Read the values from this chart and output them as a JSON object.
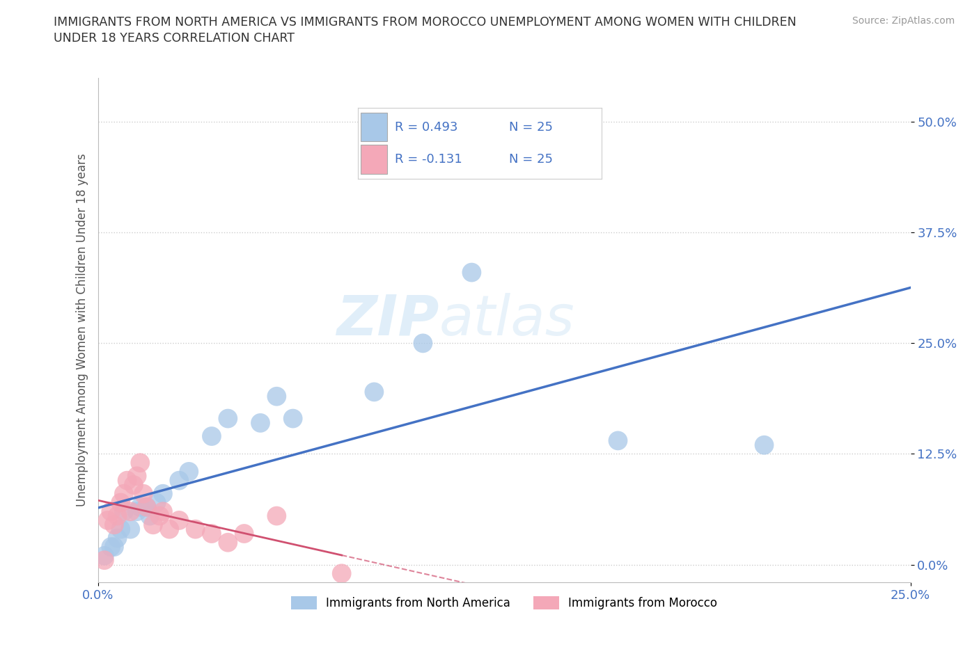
{
  "title_line1": "IMMIGRANTS FROM NORTH AMERICA VS IMMIGRANTS FROM MOROCCO UNEMPLOYMENT AMONG WOMEN WITH CHILDREN",
  "title_line2": "UNDER 18 YEARS CORRELATION CHART",
  "source": "Source: ZipAtlas.com",
  "ylabel": "Unemployment Among Women with Children Under 18 years",
  "xlim": [
    0.0,
    0.25
  ],
  "ylim": [
    -0.02,
    0.55
  ],
  "yticks": [
    0.0,
    0.125,
    0.25,
    0.375,
    0.5
  ],
  "ytick_labels": [
    "0.0%",
    "12.5%",
    "25.0%",
    "37.5%",
    "50.0%"
  ],
  "xticks": [
    0.0,
    0.25
  ],
  "xtick_labels": [
    "0.0%",
    "25.0%"
  ],
  "north_america_R": 0.493,
  "north_america_N": 25,
  "morocco_R": -0.131,
  "morocco_N": 25,
  "north_america_color": "#a8c8e8",
  "north_america_line_color": "#4472c4",
  "morocco_color": "#f4a8b8",
  "morocco_line_color": "#d05070",
  "legend_text_color": "#4472c4",
  "background_color": "#ffffff",
  "watermark_part1": "ZIP",
  "watermark_part2": "atlas",
  "na_legend_label": "Immigrants from North America",
  "mo_legend_label": "Immigrants from Morocco",
  "north_america_x": [
    0.002,
    0.004,
    0.005,
    0.006,
    0.007,
    0.008,
    0.01,
    0.012,
    0.013,
    0.015,
    0.016,
    0.018,
    0.02,
    0.025,
    0.028,
    0.035,
    0.04,
    0.05,
    0.055,
    0.06,
    0.085,
    0.1,
    0.115,
    0.16,
    0.205
  ],
  "north_america_y": [
    0.01,
    0.02,
    0.02,
    0.03,
    0.04,
    0.06,
    0.04,
    0.06,
    0.065,
    0.065,
    0.055,
    0.07,
    0.08,
    0.095,
    0.105,
    0.145,
    0.165,
    0.16,
    0.19,
    0.165,
    0.195,
    0.25,
    0.33,
    0.14,
    0.135
  ],
  "morocco_x": [
    0.002,
    0.003,
    0.004,
    0.005,
    0.006,
    0.007,
    0.008,
    0.009,
    0.01,
    0.011,
    0.012,
    0.013,
    0.014,
    0.015,
    0.017,
    0.019,
    0.02,
    0.022,
    0.025,
    0.03,
    0.035,
    0.04,
    0.045,
    0.055,
    0.075
  ],
  "morocco_y": [
    0.005,
    0.05,
    0.06,
    0.045,
    0.055,
    0.07,
    0.08,
    0.095,
    0.06,
    0.09,
    0.1,
    0.115,
    0.08,
    0.065,
    0.045,
    0.055,
    0.06,
    0.04,
    0.05,
    0.04,
    0.035,
    0.025,
    0.035,
    0.055,
    -0.01
  ]
}
